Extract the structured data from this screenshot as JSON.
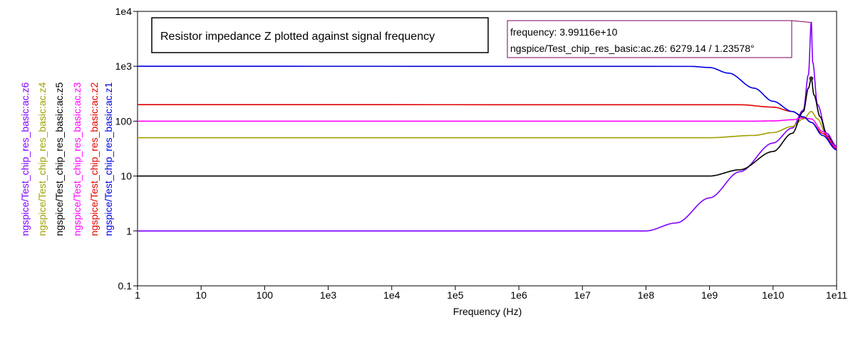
{
  "chart_data": {
    "type": "line",
    "title": "Resistor impedance Z plotted against signal frequency",
    "xlabel": "Frequency (Hz)",
    "ylabel": "",
    "xscale": "log",
    "yscale": "log",
    "xlim": [
      1,
      100000000000
    ],
    "ylim": [
      0.1,
      10000
    ],
    "grid": false,
    "x_ticks": [
      {
        "value": 1,
        "label": "1"
      },
      {
        "value": 10,
        "label": "10"
      },
      {
        "value": 100,
        "label": "100"
      },
      {
        "value": 1000,
        "label": "1e3"
      },
      {
        "value": 10000,
        "label": "1e4"
      },
      {
        "value": 100000,
        "label": "1e5"
      },
      {
        "value": 1000000,
        "label": "1e6"
      },
      {
        "value": 10000000,
        "label": "1e7"
      },
      {
        "value": 100000000,
        "label": "1e8"
      },
      {
        "value": 1000000000,
        "label": "1e9"
      },
      {
        "value": 10000000000,
        "label": "1e10"
      },
      {
        "value": 100000000000,
        "label": "1e11"
      }
    ],
    "y_ticks": [
      {
        "value": 0.1,
        "label": "0.1"
      },
      {
        "value": 1,
        "label": "1"
      },
      {
        "value": 10,
        "label": "10"
      },
      {
        "value": 100,
        "label": "100"
      },
      {
        "value": 1000,
        "label": "1e3"
      },
      {
        "value": 10000,
        "label": "1e4"
      }
    ],
    "legend": "left-vertical",
    "series": [
      {
        "name": "ngspice/Test_chip_res_basic:ac.z6",
        "color": "#7f00ff",
        "points": [
          [
            1,
            1
          ],
          [
            100000000,
            1
          ],
          [
            300000000,
            1.4
          ],
          [
            1000000000,
            4
          ],
          [
            3000000000,
            12
          ],
          [
            10000000000,
            40
          ],
          [
            20000000000,
            75
          ],
          [
            30000000000,
            160
          ],
          [
            36000000000,
            700
          ],
          [
            39911600000,
            6279.14
          ],
          [
            40000000000,
            6279.14
          ],
          [
            42000000000,
            1200
          ],
          [
            50000000000,
            200
          ],
          [
            70000000000,
            60
          ],
          [
            100000000000,
            35
          ]
        ]
      },
      {
        "name": "ngspice/Test_chip_res_basic:ac.z4",
        "color": "#a0a000",
        "points": [
          [
            1,
            50
          ],
          [
            1000000000,
            50
          ],
          [
            5000000000,
            55
          ],
          [
            10000000000,
            62
          ],
          [
            20000000000,
            80
          ],
          [
            30000000000,
            110
          ],
          [
            40000000000,
            150
          ],
          [
            50000000000,
            110
          ],
          [
            70000000000,
            55
          ],
          [
            100000000000,
            32
          ]
        ]
      },
      {
        "name": "ngspice/Test_chip_res_basic:ac.z5",
        "color": "#000000",
        "points": [
          [
            1,
            10
          ],
          [
            1000000000,
            10
          ],
          [
            3000000000,
            13
          ],
          [
            10000000000,
            28
          ],
          [
            20000000000,
            60
          ],
          [
            30000000000,
            150
          ],
          [
            36000000000,
            400
          ],
          [
            40000000000,
            600
          ],
          [
            44000000000,
            300
          ],
          [
            55000000000,
            120
          ],
          [
            70000000000,
            55
          ],
          [
            100000000000,
            32
          ]
        ]
      },
      {
        "name": "ngspice/Test_chip_res_basic:ac.z3",
        "color": "#ff00ff",
        "points": [
          [
            1,
            100
          ],
          [
            5000000000,
            100
          ],
          [
            10000000000,
            101
          ],
          [
            20000000000,
            106
          ],
          [
            30000000000,
            115
          ],
          [
            40000000000,
            110
          ],
          [
            60000000000,
            65
          ],
          [
            100000000000,
            33
          ]
        ]
      },
      {
        "name": "ngspice/Test_chip_res_basic:ac.z2",
        "color": "#e00000",
        "points": [
          [
            1,
            200
          ],
          [
            3000000000,
            199
          ],
          [
            10000000000,
            180
          ],
          [
            20000000000,
            150
          ],
          [
            30000000000,
            118
          ],
          [
            40000000000,
            95
          ],
          [
            60000000000,
            60
          ],
          [
            100000000000,
            31
          ]
        ]
      },
      {
        "name": "ngspice/Test_chip_res_basic:ac.z1",
        "color": "#0000e0",
        "points": [
          [
            1,
            1000
          ],
          [
            500000000,
            995
          ],
          [
            1000000000,
            950
          ],
          [
            2000000000,
            750
          ],
          [
            5000000000,
            400
          ],
          [
            10000000000,
            230
          ],
          [
            20000000000,
            150
          ],
          [
            30000000000,
            120
          ],
          [
            40000000000,
            95
          ],
          [
            60000000000,
            55
          ],
          [
            100000000000,
            30
          ]
        ]
      }
    ],
    "cursor": {
      "frequency_line": "frequency: 3.99116e+10",
      "value_line": "ngspice/Test_chip_res_basic:ac.z6: 6279.14 / 1.23578°",
      "x": 39911600000,
      "y": 6279.14,
      "color": "#7f0060"
    }
  }
}
